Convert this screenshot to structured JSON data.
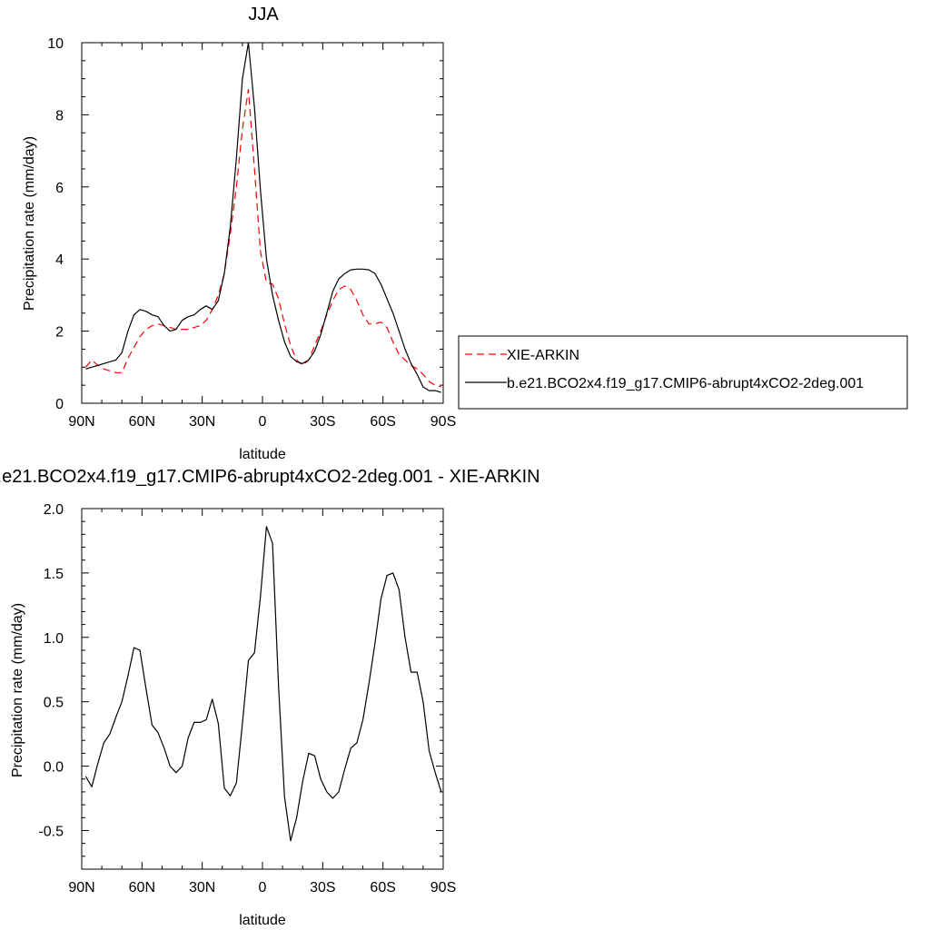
{
  "chart_data": [
    {
      "type": "line",
      "title": "JJA",
      "xlabel": "latitude",
      "ylabel": "Precipitation rate (mm/day)",
      "xlim": [
        90,
        -90
      ],
      "ylim": [
        0,
        10
      ],
      "x_ticks": [
        90,
        60,
        30,
        0,
        -30,
        -60,
        -90
      ],
      "x_tick_labels": [
        "90N",
        "60N",
        "30N",
        "0",
        "30S",
        "60S",
        "90S"
      ],
      "y_ticks": [
        0,
        2,
        4,
        6,
        8,
        10
      ],
      "y_tick_labels": [
        "0",
        "2",
        "4",
        "6",
        "8",
        "10"
      ],
      "legend_position": "right",
      "series": [
        {
          "name": "XIE-ARKIN",
          "color": "#ff0000",
          "dash": true,
          "x": [
            88,
            85,
            82,
            79,
            76,
            73,
            70,
            67,
            64,
            61,
            58,
            55,
            52,
            49,
            46,
            43,
            40,
            37,
            34,
            31,
            28,
            25,
            22,
            19,
            16,
            13,
            10,
            7,
            4,
            1,
            -2,
            -5,
            -8,
            -11,
            -14,
            -17,
            -20,
            -23,
            -26,
            -29,
            -32,
            -35,
            -38,
            -41,
            -44,
            -47,
            -50,
            -53,
            -56,
            -59,
            -62,
            -65,
            -68,
            -71,
            -74,
            -77,
            -80,
            -83,
            -86,
            -89
          ],
          "values": [
            1.0,
            1.2,
            1.05,
            0.95,
            0.9,
            0.85,
            0.85,
            1.25,
            1.55,
            1.85,
            2.05,
            2.15,
            2.2,
            2.15,
            2.1,
            2.05,
            2.05,
            2.05,
            2.1,
            2.15,
            2.3,
            2.6,
            3.0,
            3.6,
            4.7,
            6.0,
            7.6,
            8.7,
            6.5,
            4.2,
            3.35,
            3.3,
            2.9,
            2.2,
            1.6,
            1.2,
            1.05,
            1.2,
            1.6,
            2.0,
            2.45,
            2.85,
            3.15,
            3.25,
            3.15,
            2.85,
            2.45,
            2.2,
            2.2,
            2.25,
            2.1,
            1.7,
            1.35,
            1.2,
            1.05,
            0.95,
            0.8,
            0.6,
            0.5,
            0.45
          ]
        },
        {
          "name": "b.e21.BCO2x4.f19_g17.CMIP6-abrupt4xCO2-2deg.001",
          "color": "#000000",
          "dash": false,
          "x": [
            88,
            85,
            82,
            79,
            76,
            73,
            70,
            67,
            64,
            61,
            58,
            55,
            52,
            49,
            46,
            43,
            40,
            37,
            34,
            31,
            28,
            25,
            22,
            19,
            16,
            13,
            10,
            7,
            4,
            1,
            -2,
            -5,
            -8,
            -11,
            -14,
            -17,
            -20,
            -23,
            -26,
            -29,
            -32,
            -35,
            -38,
            -41,
            -44,
            -47,
            -50,
            -53,
            -56,
            -59,
            -62,
            -65,
            -68,
            -71,
            -74,
            -77,
            -80,
            -83,
            -86,
            -89
          ],
          "values": [
            0.95,
            1.0,
            1.05,
            1.1,
            1.15,
            1.2,
            1.4,
            2.0,
            2.45,
            2.6,
            2.55,
            2.45,
            2.4,
            2.15,
            2.0,
            2.05,
            2.3,
            2.4,
            2.45,
            2.6,
            2.7,
            2.6,
            2.85,
            3.6,
            4.9,
            6.8,
            9.0,
            10.0,
            8.2,
            5.9,
            4.0,
            3.0,
            2.3,
            1.7,
            1.3,
            1.15,
            1.1,
            1.2,
            1.45,
            1.9,
            2.5,
            3.1,
            3.45,
            3.6,
            3.7,
            3.72,
            3.72,
            3.7,
            3.6,
            3.3,
            2.9,
            2.5,
            2.0,
            1.5,
            1.1,
            0.8,
            0.45,
            0.35,
            0.35,
            0.3
          ]
        }
      ]
    },
    {
      "type": "line",
      "title": "b.e21.BCO2x4.f19_g17.CMIP6-abrupt4xCO2-2deg.001 - XIE-ARKIN",
      "xlabel": "latitude",
      "ylabel": "Precipitation rate (mm/day)",
      "xlim": [
        90,
        -90
      ],
      "ylim": [
        -0.8,
        2.0
      ],
      "x_ticks": [
        90,
        60,
        30,
        0,
        -30,
        -60,
        -90
      ],
      "x_tick_labels": [
        "90N",
        "60N",
        "30N",
        "0",
        "30S",
        "60S",
        "90S"
      ],
      "y_ticks": [
        -0.5,
        0.0,
        0.5,
        1.0,
        1.5,
        2.0
      ],
      "y_tick_labels": [
        "-0.5",
        "0.0",
        "0.5",
        "1.0",
        "1.5",
        "2.0"
      ],
      "series": [
        {
          "color": "#000000",
          "dash": false,
          "x": [
            88,
            85,
            82,
            79,
            76,
            73,
            70,
            67,
            64,
            61,
            58,
            55,
            52,
            49,
            46,
            43,
            40,
            37,
            34,
            31,
            28,
            25,
            22,
            19,
            16,
            13,
            10,
            7,
            4,
            1,
            -2,
            -5,
            -8,
            -11,
            -14,
            -17,
            -20,
            -23,
            -26,
            -29,
            -32,
            -35,
            -38,
            -41,
            -44,
            -47,
            -50,
            -53,
            -56,
            -59,
            -62,
            -65,
            -68,
            -71,
            -74,
            -77,
            -80,
            -83,
            -86,
            -89
          ],
          "values": [
            -0.08,
            -0.16,
            0.02,
            0.18,
            0.25,
            0.38,
            0.5,
            0.7,
            0.92,
            0.9,
            0.6,
            0.32,
            0.26,
            0.14,
            0.0,
            -0.05,
            0.0,
            0.22,
            0.34,
            0.34,
            0.36,
            0.52,
            0.33,
            -0.17,
            -0.23,
            -0.13,
            0.33,
            0.82,
            0.88,
            1.32,
            1.86,
            1.73,
            0.62,
            -0.24,
            -0.58,
            -0.4,
            -0.12,
            0.1,
            0.08,
            -0.1,
            -0.2,
            -0.25,
            -0.2,
            -0.02,
            0.14,
            0.18,
            0.36,
            0.64,
            0.95,
            1.3,
            1.48,
            1.5,
            1.37,
            1.0,
            0.73,
            0.73,
            0.5,
            0.12,
            -0.05,
            -0.2
          ]
        }
      ]
    }
  ]
}
